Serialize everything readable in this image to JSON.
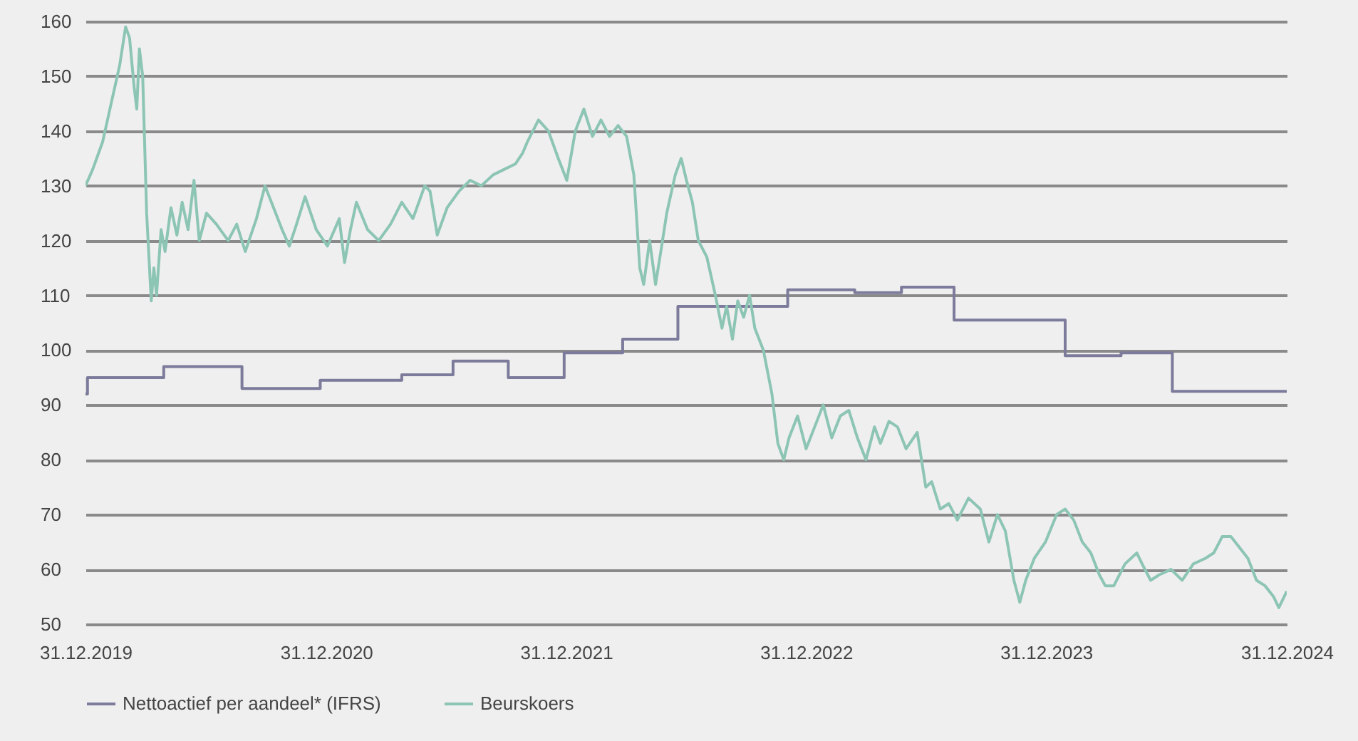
{
  "chart_data": {
    "type": "line",
    "xlim": [
      "2019-12-31",
      "2024-12-31"
    ],
    "xticks": [
      {
        "value": "2019-12-31",
        "label": "31.12.2019"
      },
      {
        "value": "2020-12-31",
        "label": "31.12.2020"
      },
      {
        "value": "2021-12-31",
        "label": "31.12.2021"
      },
      {
        "value": "2022-12-31",
        "label": "31.12.2022"
      },
      {
        "value": "2023-12-31",
        "label": "31.12.2023"
      },
      {
        "value": "2024-12-31",
        "label": "31.12.2024"
      }
    ],
    "ylim": [
      50,
      160
    ],
    "yticks": [
      50,
      60,
      70,
      80,
      90,
      100,
      110,
      120,
      130,
      140,
      150,
      160
    ],
    "grid": "y",
    "legend": "bottom",
    "series": [
      {
        "name": "Nettoactief per aandeel* (IFRS)",
        "type": "step",
        "color": "#7c7b9b",
        "x": [
          "2019-12-31",
          "2020-01-03",
          "2020-04-28",
          "2020-08-25",
          "2020-12-22",
          "2021-04-25",
          "2021-07-12",
          "2021-10-04",
          "2021-12-28",
          "2022-03-27",
          "2022-06-19",
          "2022-12-03",
          "2023-03-15",
          "2023-05-25",
          "2023-08-13",
          "2024-01-29",
          "2024-04-23",
          "2024-07-10",
          "2024-12-31"
        ],
        "values": [
          92,
          95,
          97,
          93,
          94.5,
          95.5,
          98,
          95,
          99.5,
          102,
          108,
          111,
          110.5,
          111.5,
          105.5,
          99,
          99.5,
          92.5,
          92.5
        ]
      },
      {
        "name": "Beurskoers",
        "color": "#8dc5b5",
        "x": [
          "2019-12-31",
          "2020-01-11",
          "2020-01-26",
          "2020-02-08",
          "2020-02-21",
          "2020-03-01",
          "2020-03-07",
          "2020-03-14",
          "2020-03-18",
          "2020-03-22",
          "2020-03-27",
          "2020-04-02",
          "2020-04-09",
          "2020-04-13",
          "2020-04-17",
          "2020-04-24",
          "2020-04-30",
          "2020-05-09",
          "2020-05-18",
          "2020-05-26",
          "2020-06-04",
          "2020-06-13",
          "2020-06-21",
          "2020-07-02",
          "2020-07-17",
          "2020-08-04",
          "2020-08-17",
          "2020-08-30",
          "2020-09-16",
          "2020-09-29",
          "2020-10-12",
          "2020-10-25",
          "2020-11-05",
          "2020-11-16",
          "2020-11-29",
          "2020-12-16",
          "2021-01-02",
          "2021-01-20",
          "2021-01-28",
          "2021-02-06",
          "2021-02-15",
          "2021-03-04",
          "2021-03-21",
          "2021-04-08",
          "2021-04-25",
          "2021-05-12",
          "2021-05-30",
          "2021-06-07",
          "2021-06-18",
          "2021-07-03",
          "2021-07-21",
          "2021-08-07",
          "2021-08-24",
          "2021-09-11",
          "2021-09-28",
          "2021-10-15",
          "2021-10-26",
          "2021-11-02",
          "2021-11-19",
          "2021-12-04",
          "2021-12-19",
          "2022-01-01",
          "2022-01-14",
          "2022-01-27",
          "2022-02-09",
          "2022-02-22",
          "2022-03-07",
          "2022-03-20",
          "2022-04-02",
          "2022-04-13",
          "2022-04-22",
          "2022-04-28",
          "2022-05-07",
          "2022-05-16",
          "2022-05-24",
          "2022-06-02",
          "2022-06-15",
          "2022-06-24",
          "2022-07-02",
          "2022-07-11",
          "2022-07-20",
          "2022-08-02",
          "2022-08-15",
          "2022-08-25",
          "2022-09-01",
          "2022-09-10",
          "2022-09-18",
          "2022-09-27",
          "2022-10-06",
          "2022-10-14",
          "2022-10-27",
          "2022-11-09",
          "2022-11-18",
          "2022-11-27",
          "2022-12-05",
          "2022-12-18",
          "2022-12-31",
          "2023-01-13",
          "2023-01-26",
          "2023-02-08",
          "2023-02-21",
          "2023-03-06",
          "2023-03-19",
          "2023-04-01",
          "2023-04-14",
          "2023-04-23",
          "2023-05-06",
          "2023-05-19",
          "2023-06-01",
          "2023-06-18",
          "2023-07-01",
          "2023-07-10",
          "2023-07-23",
          "2023-08-05",
          "2023-08-18",
          "2023-09-04",
          "2023-09-22",
          "2023-10-05",
          "2023-10-18",
          "2023-10-30",
          "2023-11-12",
          "2023-11-21",
          "2023-11-30",
          "2023-12-13",
          "2023-12-30",
          "2024-01-16",
          "2024-01-29",
          "2024-02-11",
          "2024-02-24",
          "2024-03-08",
          "2024-03-21",
          "2024-03-30",
          "2024-04-12",
          "2024-04-29",
          "2024-05-17",
          "2024-05-25",
          "2024-06-07",
          "2024-06-20",
          "2024-07-08",
          "2024-07-25",
          "2024-08-11",
          "2024-08-29",
          "2024-09-11",
          "2024-09-24",
          "2024-10-07",
          "2024-10-20",
          "2024-11-02",
          "2024-11-15",
          "2024-11-28",
          "2024-12-11",
          "2024-12-19",
          "2024-12-31"
        ],
        "values": [
          130,
          133,
          138,
          145,
          152,
          159,
          157,
          148,
          144,
          155,
          150,
          125,
          109,
          115,
          110,
          122,
          118,
          126,
          121,
          127,
          122,
          131,
          120,
          125,
          123,
          120,
          123,
          118,
          124,
          130,
          126,
          122,
          119,
          123,
          128,
          122,
          119,
          124,
          116,
          122,
          127,
          122,
          120,
          123,
          127,
          124,
          130,
          129,
          121,
          126,
          129,
          131,
          130,
          132,
          133,
          134,
          136,
          138,
          142,
          140,
          135,
          131,
          140,
          144,
          139,
          142,
          139,
          141,
          139,
          132,
          115,
          112,
          120,
          112,
          118,
          125,
          132,
          135,
          131,
          127,
          120,
          117,
          110,
          104,
          108,
          102,
          109,
          106,
          110,
          104,
          100,
          92,
          83,
          80,
          84,
          88,
          82,
          86,
          90,
          84,
          88,
          89,
          84,
          80,
          86,
          83,
          87,
          86,
          82,
          85,
          75,
          76,
          71,
          72,
          69,
          73,
          71,
          65,
          70,
          67,
          58,
          54,
          58,
          62,
          65,
          70,
          71,
          69,
          65,
          63,
          59,
          57,
          57,
          61,
          63,
          61,
          58,
          59,
          60,
          58,
          61,
          62,
          63,
          66,
          66,
          64,
          62,
          58,
          57,
          55,
          53,
          56
        ]
      }
    ]
  }
}
